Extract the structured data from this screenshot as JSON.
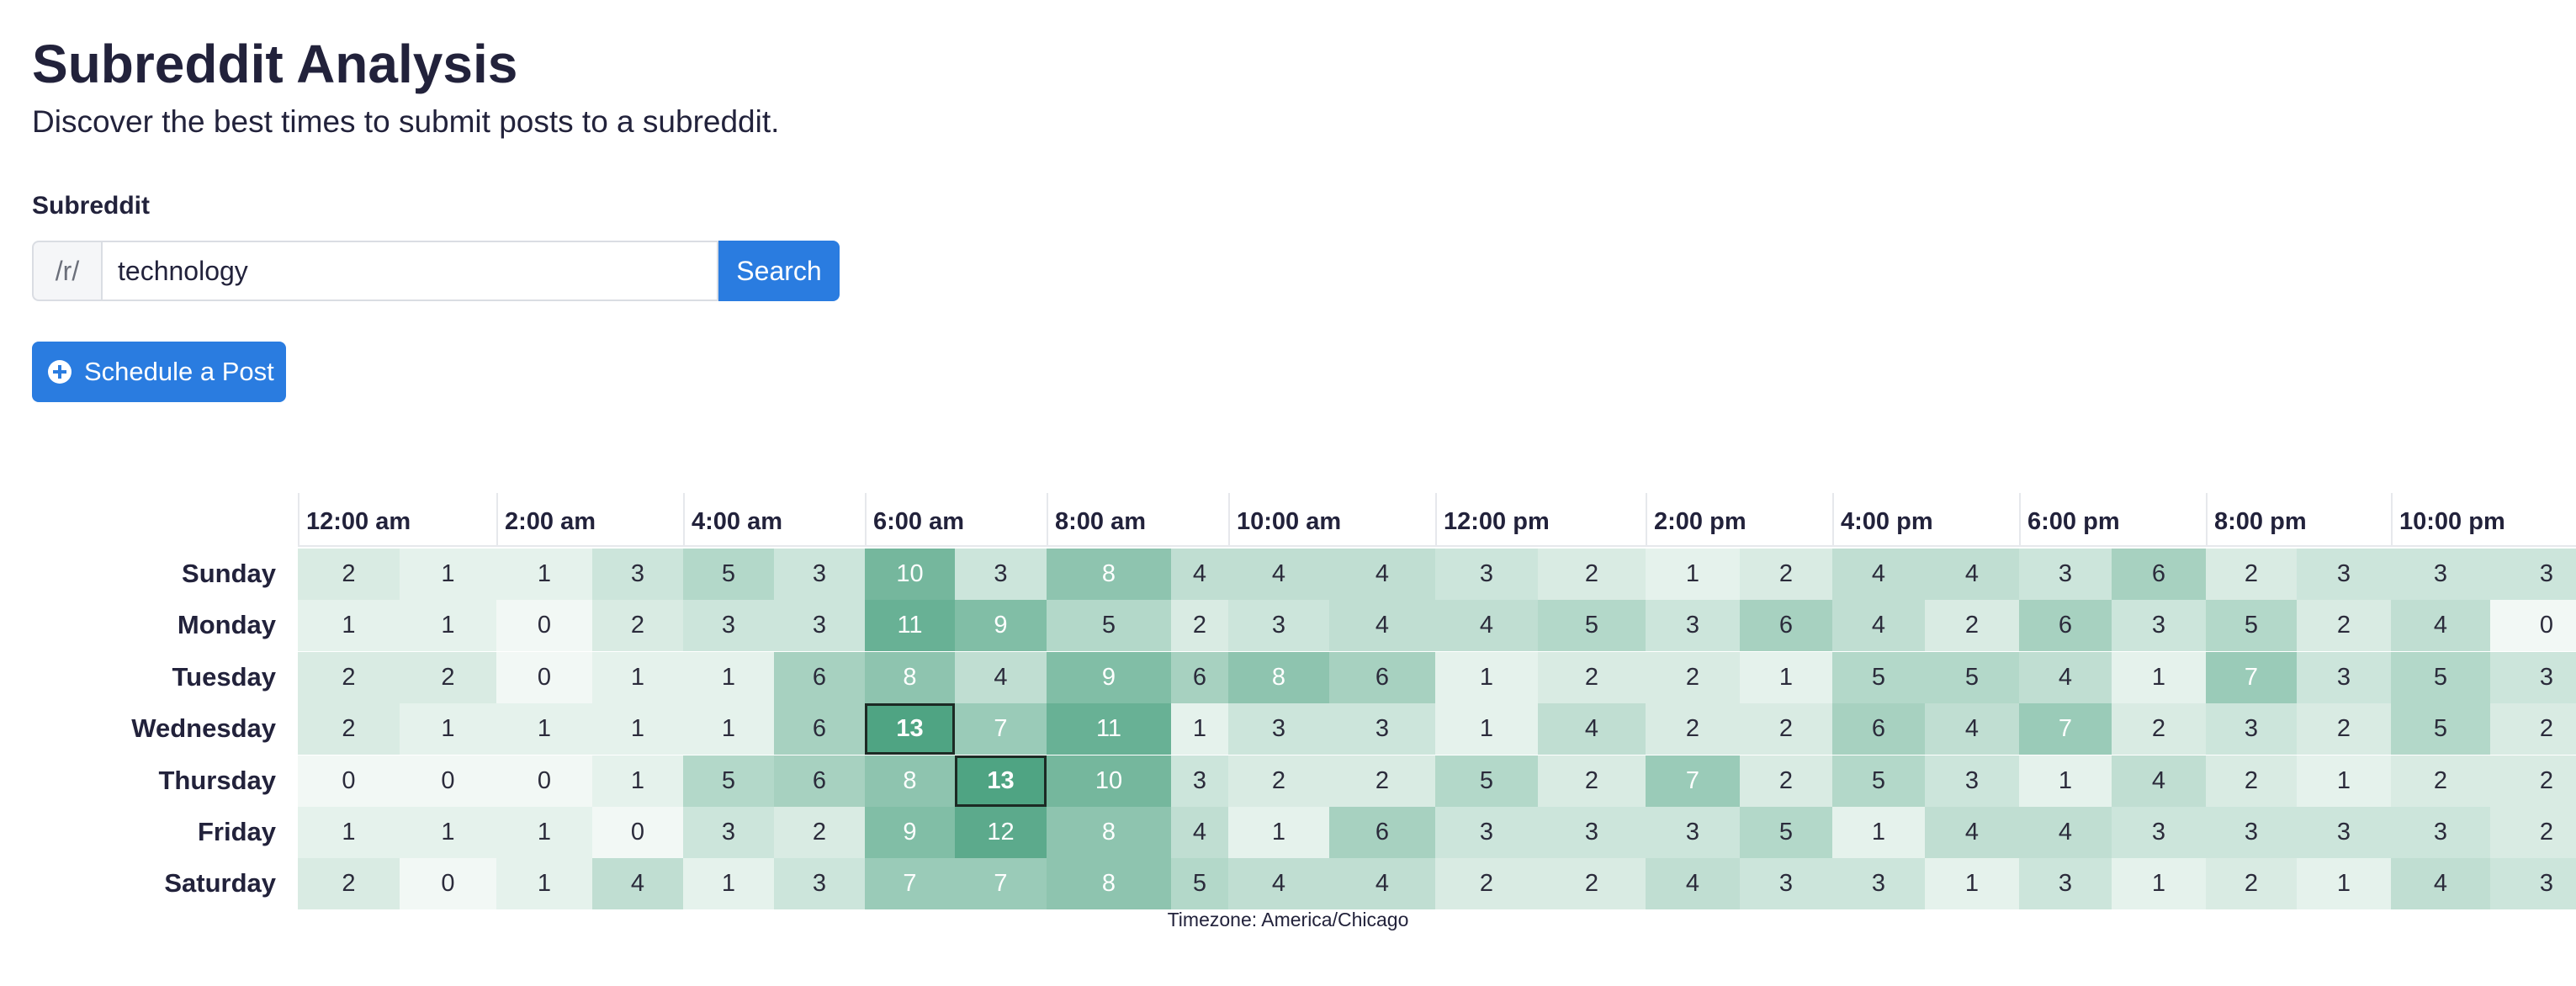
{
  "page": {
    "title": "Subreddit Analysis",
    "subtitle": "Discover the best times to submit posts to a subreddit."
  },
  "search": {
    "label": "Subreddit",
    "prefix": "/r/",
    "value": "technology",
    "button_label": "Search"
  },
  "schedule_button": {
    "label": "Schedule a Post",
    "icon": "plus-circle-icon"
  },
  "colors": {
    "primary": "#2a7ce0",
    "heat_low": "#f2f8f5",
    "heat_high": "#4fa483"
  },
  "heatmap": {
    "hour_headers": [
      "12:00 am",
      "2:00 am",
      "4:00 am",
      "6:00 am",
      "8:00 am",
      "10:00 am",
      "12:00 pm",
      "2:00 pm",
      "4:00 pm",
      "6:00 pm",
      "8:00 pm",
      "10:00 pm"
    ],
    "days": [
      "Sunday",
      "Monday",
      "Tuesday",
      "Wednesday",
      "Thursday",
      "Friday",
      "Saturday"
    ],
    "values": [
      [
        2,
        1,
        1,
        3,
        5,
        3,
        10,
        3,
        8,
        4,
        4,
        4,
        3,
        2,
        1,
        2,
        4,
        4,
        3,
        6,
        2,
        3,
        3,
        3
      ],
      [
        1,
        1,
        0,
        2,
        3,
        3,
        11,
        9,
        5,
        2,
        3,
        4,
        4,
        5,
        3,
        6,
        4,
        2,
        6,
        3,
        5,
        2,
        4,
        0
      ],
      [
        2,
        2,
        0,
        1,
        1,
        6,
        8,
        4,
        9,
        6,
        8,
        6,
        1,
        2,
        2,
        1,
        5,
        5,
        4,
        1,
        7,
        3,
        5,
        3
      ],
      [
        2,
        1,
        1,
        1,
        1,
        6,
        13,
        7,
        11,
        1,
        3,
        3,
        1,
        4,
        2,
        2,
        6,
        4,
        7,
        2,
        3,
        2,
        5,
        2
      ],
      [
        0,
        0,
        0,
        1,
        5,
        6,
        8,
        13,
        10,
        3,
        2,
        2,
        5,
        2,
        7,
        2,
        5,
        3,
        1,
        4,
        2,
        1,
        2,
        2
      ],
      [
        1,
        1,
        1,
        0,
        3,
        2,
        9,
        12,
        8,
        4,
        1,
        6,
        3,
        3,
        3,
        5,
        1,
        4,
        4,
        3,
        3,
        3,
        3,
        2
      ],
      [
        2,
        0,
        1,
        4,
        1,
        3,
        7,
        7,
        8,
        5,
        4,
        4,
        2,
        2,
        4,
        3,
        3,
        1,
        3,
        1,
        2,
        1,
        4,
        3
      ]
    ],
    "max_value": 13,
    "highlighted": [
      [
        3,
        6
      ],
      [
        4,
        7
      ]
    ],
    "timezone": "Timezone: America/Chicago"
  }
}
